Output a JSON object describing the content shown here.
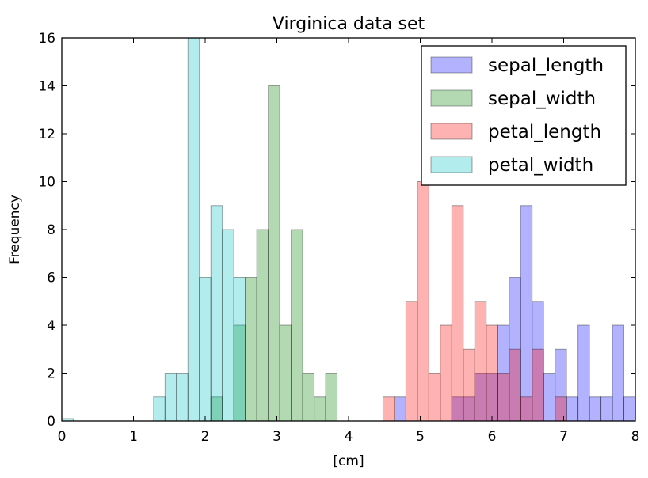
{
  "chart_data": {
    "type": "bar",
    "title": "Virginica data set",
    "xlabel": "[cm]",
    "ylabel": "Frequency",
    "xlim": [
      0,
      8
    ],
    "ylim": [
      0,
      16
    ],
    "xticks": [
      0,
      1,
      2,
      3,
      4,
      5,
      6,
      7,
      8
    ],
    "yticks": [
      0,
      2,
      4,
      6,
      8,
      10,
      12,
      14,
      16
    ],
    "bin_width": 0.16,
    "legend_position": "top-right",
    "grid": false,
    "series": [
      {
        "name": "sepal_length",
        "color": "#0000ff",
        "bins": [
          {
            "x": 4.8,
            "count": 1
          },
          {
            "x": 5.6,
            "count": 1
          },
          {
            "x": 5.76,
            "count": 1
          },
          {
            "x": 5.92,
            "count": 2
          },
          {
            "x": 6.08,
            "count": 2
          },
          {
            "x": 6.24,
            "count": 4
          },
          {
            "x": 6.4,
            "count": 6
          },
          {
            "x": 6.56,
            "count": 9
          },
          {
            "x": 6.72,
            "count": 5
          },
          {
            "x": 6.88,
            "count": 2
          },
          {
            "x": 7.04,
            "count": 3
          },
          {
            "x": 7.2,
            "count": 1
          },
          {
            "x": 7.36,
            "count": 4
          },
          {
            "x": 7.52,
            "count": 1
          },
          {
            "x": 7.68,
            "count": 1
          },
          {
            "x": 7.84,
            "count": 4
          },
          {
            "x": 8.0,
            "count": 1
          }
        ]
      },
      {
        "name": "sepal_width",
        "color": "#008000",
        "bins": [
          {
            "x": 2.24,
            "count": 1
          },
          {
            "x": 2.56,
            "count": 4
          },
          {
            "x": 2.72,
            "count": 6
          },
          {
            "x": 2.88,
            "count": 8
          },
          {
            "x": 3.04,
            "count": 14
          },
          {
            "x": 3.2,
            "count": 4
          },
          {
            "x": 3.36,
            "count": 8
          },
          {
            "x": 3.52,
            "count": 2
          },
          {
            "x": 3.68,
            "count": 1
          },
          {
            "x": 3.84,
            "count": 2
          }
        ]
      },
      {
        "name": "petal_length",
        "color": "#ff0000",
        "bins": [
          {
            "x": 4.64,
            "count": 1
          },
          {
            "x": 4.96,
            "count": 5
          },
          {
            "x": 5.12,
            "count": 10
          },
          {
            "x": 5.28,
            "count": 2
          },
          {
            "x": 5.44,
            "count": 4
          },
          {
            "x": 5.6,
            "count": 9
          },
          {
            "x": 5.76,
            "count": 3
          },
          {
            "x": 5.92,
            "count": 5
          },
          {
            "x": 6.08,
            "count": 4
          },
          {
            "x": 6.24,
            "count": 2
          },
          {
            "x": 6.4,
            "count": 3
          },
          {
            "x": 6.56,
            "count": 1
          },
          {
            "x": 6.72,
            "count": 3
          },
          {
            "x": 7.04,
            "count": 1
          }
        ]
      },
      {
        "name": "petal_width",
        "color": "#00bfbf",
        "bins": [
          {
            "x": 0.16,
            "count": 0.1
          },
          {
            "x": 1.44,
            "count": 1
          },
          {
            "x": 1.6,
            "count": 2
          },
          {
            "x": 1.76,
            "count": 2
          },
          {
            "x": 1.92,
            "count": 16
          },
          {
            "x": 2.08,
            "count": 6
          },
          {
            "x": 2.24,
            "count": 9
          },
          {
            "x": 2.4,
            "count": 8
          },
          {
            "x": 2.56,
            "count": 6
          }
        ]
      }
    ]
  }
}
